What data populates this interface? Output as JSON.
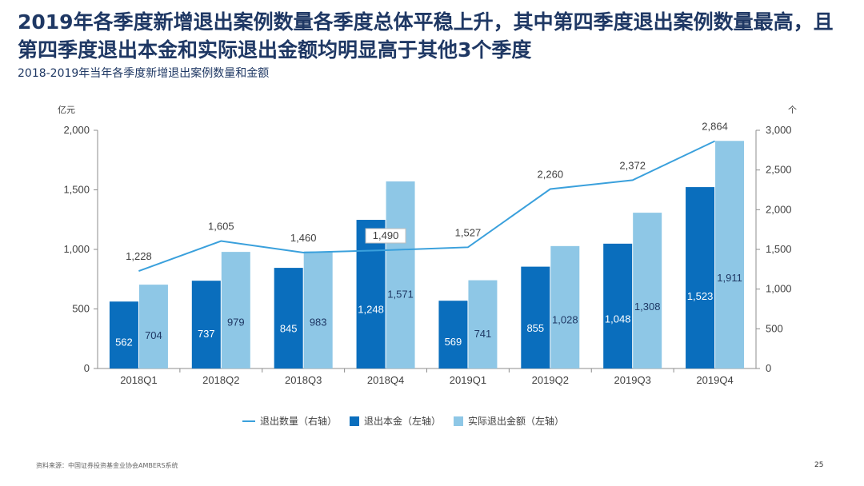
{
  "title": "2019年各季度新增退出案例数量各季度总体平稳上升，其中第四季度退出案例数量最高，且第四季度退出本金和实际退出金额均明显高于其他3个季度",
  "subtitle": "2018-2019年当年各季度新增退出案例数量和金额",
  "source": "资料来源：中国证券投资基金业协会AMBERS系统",
  "page_number": "25",
  "chart_data": {
    "type": "bar",
    "categories": [
      "2018Q1",
      "2018Q2",
      "2018Q3",
      "2018Q4",
      "2019Q1",
      "2019Q2",
      "2019Q3",
      "2019Q4"
    ],
    "left_axis": {
      "unit_label": "亿元",
      "ylim": [
        0,
        2000
      ],
      "ticks": [
        0,
        500,
        1000,
        1500,
        2000
      ],
      "tick_labels": [
        "0",
        "500",
        "1,000",
        "1,500",
        "2,000"
      ]
    },
    "right_axis": {
      "unit_label": "个",
      "ylim": [
        0,
        3000
      ],
      "ticks": [
        0,
        500,
        1000,
        1500,
        2000,
        2500,
        3000
      ],
      "tick_labels": [
        "0",
        "500",
        "1,000",
        "1,500",
        "2,000",
        "2,500",
        "3,000"
      ]
    },
    "series": [
      {
        "name": "退出本金（左轴）",
        "type": "bar",
        "axis": "left",
        "color": "#0a6ebd",
        "values": [
          562,
          737,
          845,
          1248,
          569,
          855,
          1048,
          1523
        ],
        "labels": [
          "562",
          "737",
          "845",
          "1,248",
          "569",
          "855",
          "1,048",
          "1,523"
        ]
      },
      {
        "name": "实际退出金额（左轴）",
        "type": "bar",
        "axis": "left",
        "color": "#8ec7e6",
        "values": [
          704,
          979,
          983,
          1571,
          741,
          1028,
          1308,
          1911
        ],
        "labels": [
          "704",
          "979",
          "983",
          "1,571",
          "741",
          "1,028",
          "1,308",
          "1,911"
        ]
      },
      {
        "name": "退出数量（右轴）",
        "type": "line",
        "axis": "right",
        "color": "#3aa0dc",
        "values": [
          1228,
          1605,
          1460,
          1490,
          1527,
          2260,
          2372,
          2864
        ],
        "labels": [
          "1,228",
          "1,605",
          "1,460",
          "1,490",
          "1,527",
          "2,260",
          "2,372",
          "2,864"
        ]
      }
    ],
    "legend_order": [
      "退出数量（右轴）",
      "退出本金（左轴）",
      "实际退出金额（左轴）"
    ],
    "legend_position": "bottom-center",
    "grid": false
  }
}
